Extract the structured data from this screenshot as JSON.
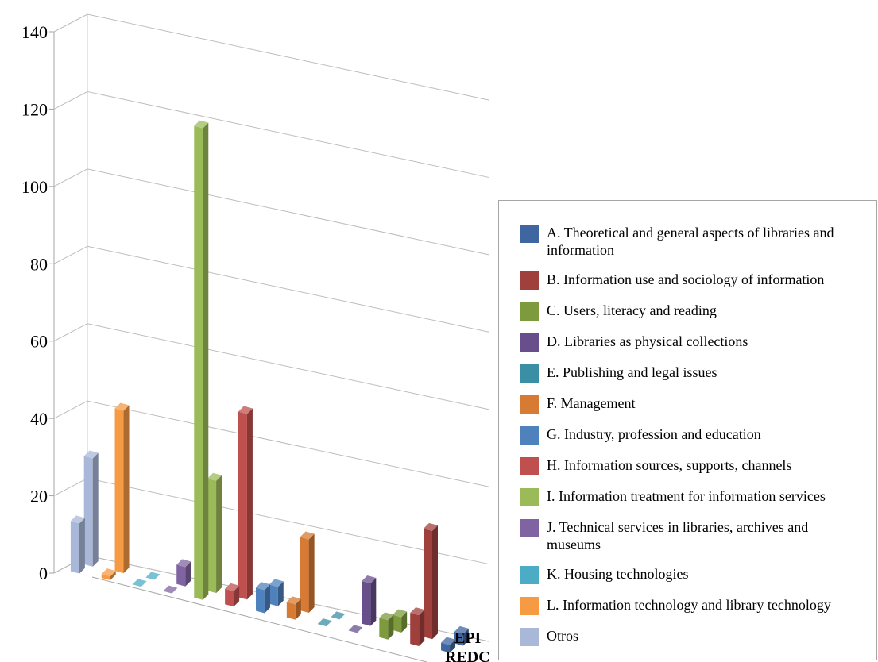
{
  "chart_data": {
    "type": "bar",
    "variant": "3d-column",
    "title": "",
    "xlabel": "",
    "ylabel": "",
    "ylim": [
      0,
      140
    ],
    "yticks": [
      0,
      20,
      40,
      60,
      80,
      100,
      120,
      140
    ],
    "grid": true,
    "legend_placement": "right",
    "depth_series": [
      "EPI",
      "REDC"
    ],
    "categories": [
      "Otros",
      "L. Information technology and library technology",
      "K. Housing technologies",
      "J. Technical services in libraries, archives and museums",
      "I. Information treatment for information services",
      "H. Information sources, supports, channels",
      "G. Industry, profession and education",
      "F. Management",
      "E. Publishing and legal issues",
      "D. Libraries as physical collections",
      "C. Users, literacy and reading",
      "B. Information use and sociology of information",
      "A. Theoretical and general aspects of libraries and information"
    ],
    "series": [
      {
        "name": "EPI",
        "values": [
          28,
          42,
          0,
          5,
          29,
          48,
          5,
          19,
          0,
          11,
          4,
          28,
          3
        ]
      },
      {
        "name": "REDC",
        "values": [
          13,
          1,
          0,
          0,
          122,
          4,
          6,
          4,
          0,
          0,
          5,
          8,
          2
        ]
      }
    ],
    "colors": [
      "#a9b8d8",
      "#f69a43",
      "#4cacc6",
      "#8064a2",
      "#9bbb59",
      "#c0504d",
      "#4f81bd",
      "#d77a33",
      "#3a8fa5",
      "#684f8c",
      "#7d9b3d",
      "#a0403d",
      "#3f66a0"
    ]
  },
  "legend": {
    "items": [
      {
        "label": "A. Theoretical and general aspects of libraries and information",
        "color": "#3f66a0"
      },
      {
        "label": "B. Information use and sociology of information",
        "color": "#a0403d"
      },
      {
        "label": "C. Users, literacy and reading",
        "color": "#7d9b3d"
      },
      {
        "label": "D. Libraries as physical collections",
        "color": "#684f8c"
      },
      {
        "label": "E. Publishing and legal issues",
        "color": "#3a8fa5"
      },
      {
        "label": "F. Management",
        "color": "#d77a33"
      },
      {
        "label": "G. Industry, profession and education",
        "color": "#4f81bd"
      },
      {
        "label": "H. Information sources, supports, channels",
        "color": "#c0504d"
      },
      {
        "label": "I. Information treatment for information services",
        "color": "#9bbb59"
      },
      {
        "label": "J. Technical services in libraries, archives and museums",
        "color": "#8064a2"
      },
      {
        "label": "K. Housing technologies",
        "color": "#4cacc6"
      },
      {
        "label": "L. Information technology and library technology",
        "color": "#f69a43"
      },
      {
        "label": "Otros",
        "color": "#a9b8d8"
      }
    ]
  }
}
